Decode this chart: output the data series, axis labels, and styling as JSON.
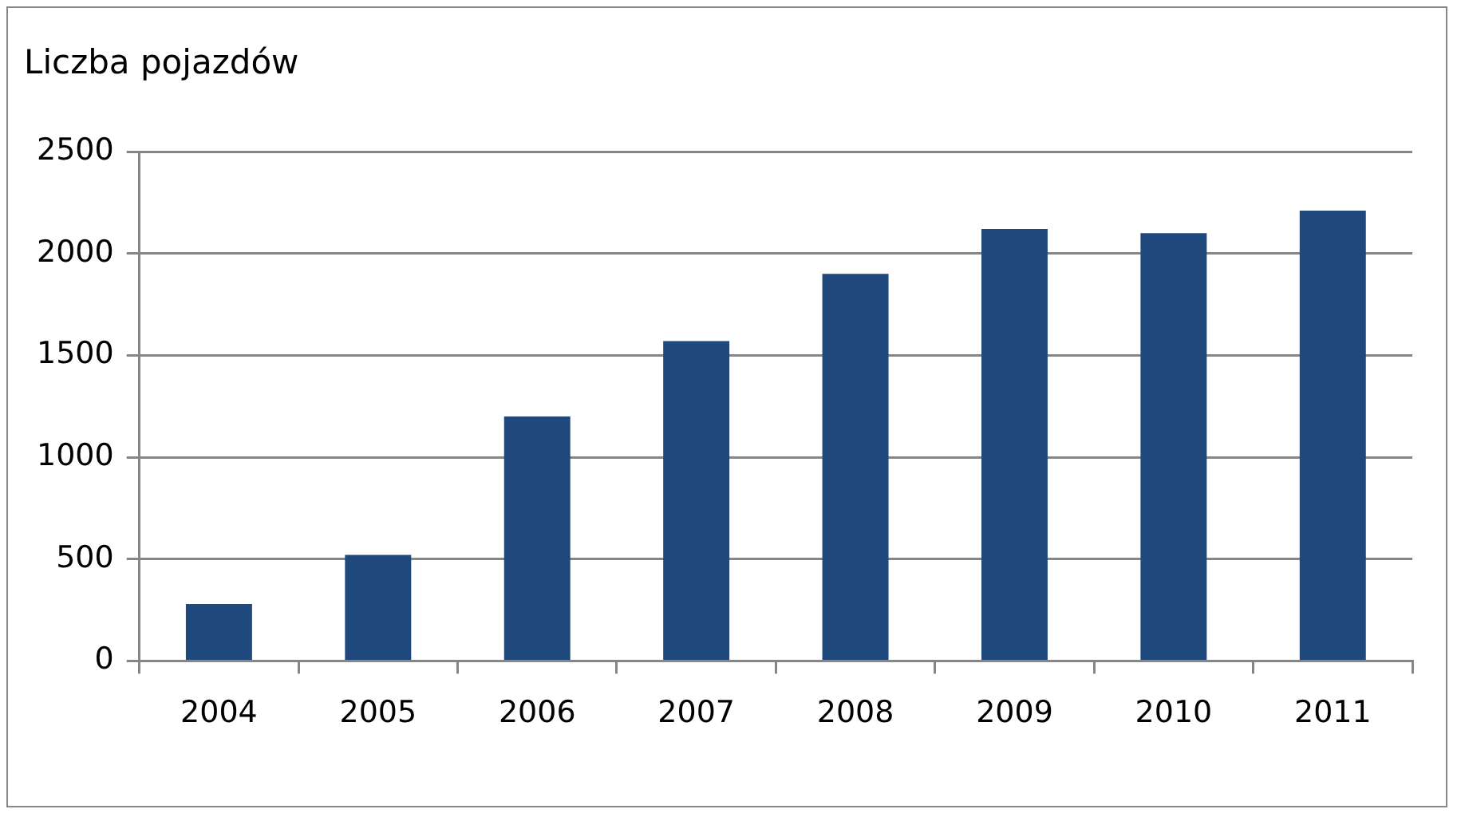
{
  "chart_data": {
    "type": "bar",
    "ylabel": "Liczba pojazdów",
    "categories": [
      "2004",
      "2005",
      "2006",
      "2007",
      "2008",
      "2009",
      "2010",
      "2011"
    ],
    "values": [
      280,
      520,
      1200,
      1570,
      1900,
      2120,
      2100,
      2210
    ],
    "color": "#1f497d",
    "ylim": [
      0,
      2500
    ],
    "yticks": [
      0,
      500,
      1000,
      1500,
      2000,
      2500
    ],
    "grid": "y",
    "legend": false
  }
}
